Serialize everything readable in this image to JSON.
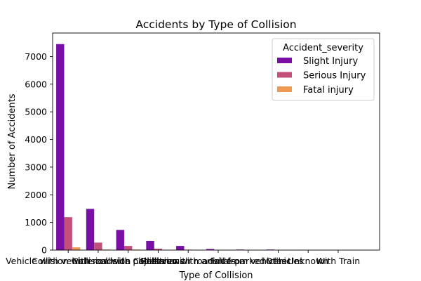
{
  "chart_data": {
    "type": "bar",
    "title": "Accidents by Type of Collision",
    "xlabel": "Type of Collision",
    "ylabel": "Number of Accidents",
    "ylim": [
      0,
      7850
    ],
    "yticks": [
      0,
      1000,
      2000,
      3000,
      4000,
      5000,
      6000,
      7000
    ],
    "ytick_labels": [
      "0",
      "1000",
      "2000",
      "3000",
      "4000",
      "5000",
      "6000",
      "7000"
    ],
    "categories": [
      "Vehicle with vehicle collision",
      "Collision with roadside objects",
      "Collision with pedestrians",
      "Rollover",
      "Collision with animals",
      "Collision with roadside-parked vehicles",
      "Fall from vehicles",
      "Other",
      "Unknown",
      "With Train"
    ],
    "series": [
      {
        "name": "Slight Injury",
        "color": "#7a0fa5",
        "values": [
          7450,
          1490,
          730,
          330,
          150,
          40,
          20,
          20,
          10,
          0
        ]
      },
      {
        "name": "Serious Injury",
        "color": "#c2507a",
        "values": [
          1190,
          270,
          150,
          50,
          15,
          5,
          2,
          3,
          1,
          0
        ]
      },
      {
        "name": "Fatal injury",
        "color": "#ee9a54",
        "values": [
          100,
          20,
          20,
          10,
          5,
          2,
          1,
          1,
          0,
          0
        ]
      }
    ],
    "grid": false,
    "legend": {
      "title": "Accident_severity",
      "placement": "top-right"
    }
  }
}
